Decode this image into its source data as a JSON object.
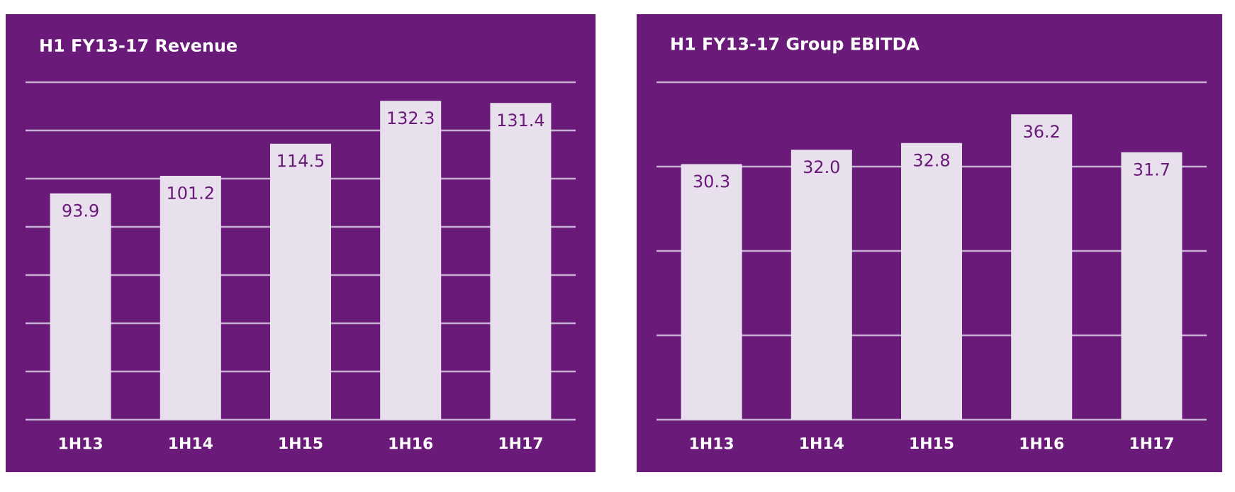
{
  "chart_data": [
    {
      "type": "bar",
      "title": "H1 FY13-17 Revenue",
      "categories": [
        "1H13",
        "1H14",
        "1H15",
        "1H16",
        "1H17"
      ],
      "values": [
        93.9,
        101.2,
        114.5,
        132.3,
        131.4
      ],
      "color": "#e8e0ec",
      "ylim": [
        0,
        140
      ],
      "yticks": [
        {
          "value": 0,
          "label": null
        },
        {
          "value": 20,
          "label": null
        },
        {
          "value": 40,
          "label": null
        },
        {
          "value": 60,
          "label": null
        },
        {
          "value": 80,
          "label": null
        },
        {
          "value": 100,
          "label": null
        },
        {
          "value": 120,
          "label": null
        },
        {
          "value": 140,
          "label": null
        }
      ],
      "grid": "y",
      "data_labels": true,
      "tick_labels": "x"
    },
    {
      "type": "bar",
      "title": "H1 FY13-17 Group EBITDA",
      "categories": [
        "1H13",
        "1H14",
        "1H15",
        "1H16",
        "1H17"
      ],
      "values": [
        30.3,
        32.0,
        32.8,
        36.2,
        31.7
      ],
      "value_labels": [
        "30.3",
        "32.0",
        "32.8",
        "36.2",
        "31.7"
      ],
      "color": "#e8e0ec",
      "ylim": [
        0,
        40
      ],
      "yticks": [
        {
          "value": 0,
          "label": null
        },
        {
          "value": 10,
          "label": null
        },
        {
          "value": 20,
          "label": null
        },
        {
          "value": 30,
          "label": null
        },
        {
          "value": 40,
          "label": null
        }
      ],
      "grid": "y",
      "tick_labels": "x"
    }
  ]
}
